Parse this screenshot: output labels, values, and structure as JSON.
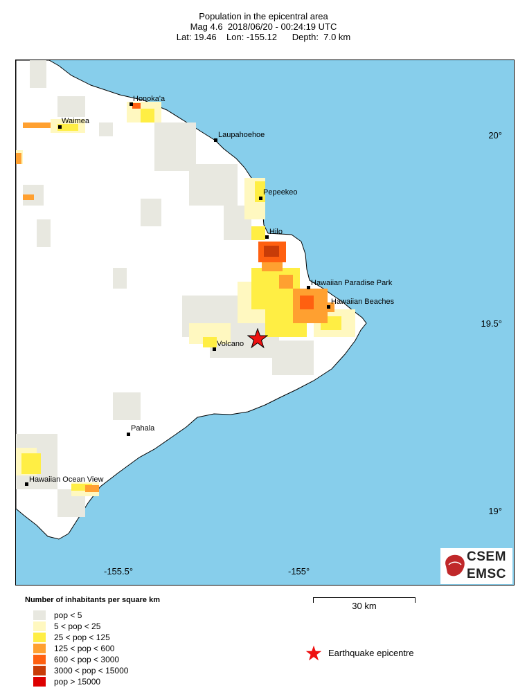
{
  "title": {
    "line1": "Population in the epicentral area",
    "line2": "Mag 4.6  2018/06/20 - 00:24:19 UTC",
    "line3": "Lat: 19.46    Lon: -155.12      Depth:  7.0 km"
  },
  "axes": {
    "x_ticks": [
      "-155.5°",
      "-155°"
    ],
    "y_ticks": [
      "20°",
      "19.5°",
      "19°"
    ]
  },
  "places": [
    {
      "name": "Honoka'a"
    },
    {
      "name": "Waimea"
    },
    {
      "name": "Laupahoehoe"
    },
    {
      "name": "Pepeekeo"
    },
    {
      "name": "Hilo"
    },
    {
      "name": "Hawaiian Paradise Park"
    },
    {
      "name": "Hawaiian Beaches"
    },
    {
      "name": "Volcano"
    },
    {
      "name": "Pahala"
    },
    {
      "name": "Hawaiian Ocean View"
    }
  ],
  "epicenter": {
    "lat": 19.46,
    "lon": -155.12,
    "color": "#ee1111"
  },
  "colors": {
    "sea": "#87ceeb",
    "land": "#ffffff",
    "coast": "#000000"
  },
  "legend": {
    "title": "Number of inhabitants per square km",
    "items": [
      {
        "label": "pop < 5",
        "color": "#e8e8e0"
      },
      {
        "label": "5 < pop < 25",
        "color": "#fff8c0"
      },
      {
        "label": "25 < pop < 125",
        "color": "#ffee44"
      },
      {
        "label": "125 < pop < 600",
        "color": "#ffa030"
      },
      {
        "label": "600 < pop < 3000",
        "color": "#ff6010"
      },
      {
        "label": "3000 < pop < 15000",
        "color": "#c83c08"
      },
      {
        "label": "pop > 15000",
        "color": "#dd0000"
      }
    ],
    "epicentre_label": "Earthquake epicentre"
  },
  "scale": {
    "label": "30 km"
  },
  "logo": {
    "line1": "CSEM",
    "line2": "EMSC"
  }
}
